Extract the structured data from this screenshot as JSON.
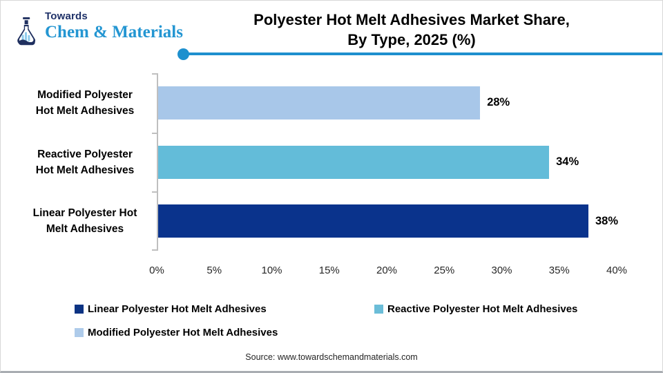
{
  "logo": {
    "top": "Towards",
    "bottom": "Chem & Materials"
  },
  "header": {
    "title_line1": "Polyester Hot Melt Adhesives Market Share,",
    "title_line2": "By Type, 2025 (%)"
  },
  "chart_data": {
    "type": "bar",
    "orientation": "horizontal",
    "title": "Polyester Hot Melt Adhesives Market Share, By Type, 2025 (%)",
    "categories": [
      "Modified Polyester Hot Melt Adhesives",
      "Reactive Polyester Hot Melt Adhesives",
      "Linear Polyester Hot Melt Adhesives"
    ],
    "category_label_lines": [
      [
        "Modified Polyester",
        "Hot Melt Adhesives"
      ],
      [
        "Reactive Polyester",
        "Hot Melt Adhesives"
      ],
      [
        "Linear Polyester Hot",
        "Melt Adhesives"
      ]
    ],
    "values": [
      28,
      34,
      38
    ],
    "value_labels": [
      "28%",
      "34%",
      "38%"
    ],
    "bar_colors": [
      "#A8C7E9",
      "#63BCD9",
      "#0A338C"
    ],
    "xlim": [
      0,
      40
    ],
    "x_tick_labels": [
      "0%",
      "5%",
      "10%",
      "15%",
      "20%",
      "25%",
      "30%",
      "35%",
      "40%"
    ],
    "grid": false,
    "legend_position": "bottom"
  },
  "legend": {
    "items": [
      {
        "label": "Linear Polyester Hot Melt Adhesives",
        "color": "#0C3383"
      },
      {
        "label": "Reactive Polyester Hot Melt Adhesives",
        "color": "#6BBDD8"
      },
      {
        "label": "Modified Polyester Hot Melt Adhesives",
        "color": "#AECBEA"
      }
    ]
  },
  "footer": {
    "source": "Source: www.towardschemandmaterials.com"
  },
  "colors": {
    "accent_line": "#1E90CE",
    "axis_gray": "#BFBFBF",
    "logo_blue": "#2496D2",
    "logo_navy": "#1F3168"
  }
}
